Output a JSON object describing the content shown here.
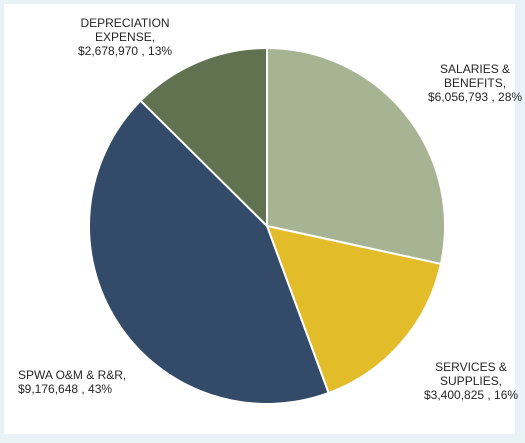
{
  "chart_data": {
    "type": "pie",
    "title": "",
    "start_angle_deg": 0,
    "direction": "clockwise",
    "slices": [
      {
        "name_lines": [
          "SALARIES &",
          "BENEFITS,"
        ],
        "value_text": "$6,056,793 , 28%",
        "value": 6056793,
        "percent": 28,
        "color": "#a6b493"
      },
      {
        "name_lines": [
          "SERVICES &",
          "SUPPLIES,"
        ],
        "value_text": "$3,400,825 , 16%",
        "value": 3400825,
        "percent": 16,
        "color": "#e3bc2a"
      },
      {
        "name_lines": [
          "SPWA O&M & R&R,"
        ],
        "value_text": "$9,176,648 , 43%",
        "value": 9176648,
        "percent": 43,
        "color": "#334b69"
      },
      {
        "name_lines": [
          "DEPRECIATION",
          "EXPENSE,"
        ],
        "value_text": "$2,678,970 , 13%",
        "value": 2678970,
        "percent": 13,
        "color": "#617251"
      }
    ]
  }
}
